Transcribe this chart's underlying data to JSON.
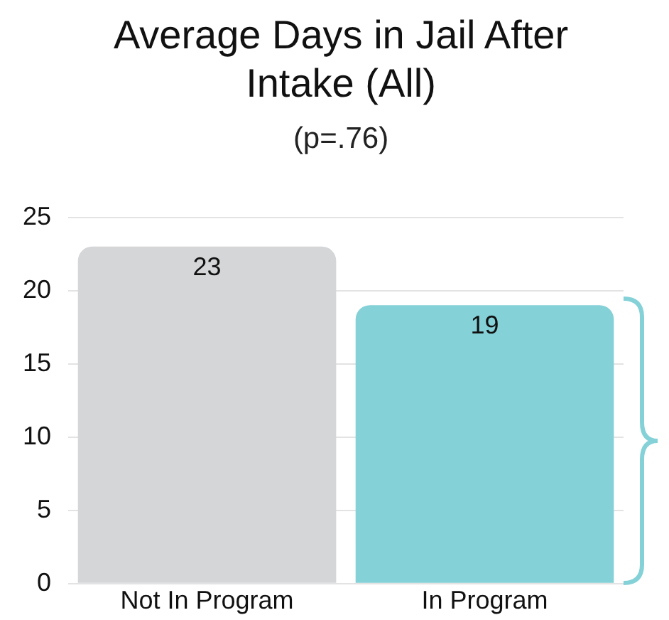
{
  "chart_data": {
    "type": "bar",
    "title": "Average Days in Jail After Intake (All)",
    "subtitle": "(p=.76)",
    "categories": [
      "Not In Program",
      "In Program"
    ],
    "values": [
      23,
      19
    ],
    "colors": [
      "#d5d6d8",
      "#84d1d8"
    ],
    "ylim": [
      0,
      25
    ],
    "yticks": [
      0,
      5,
      10,
      15,
      20,
      25
    ],
    "grid": "y",
    "data_labels": true,
    "legend": false
  }
}
